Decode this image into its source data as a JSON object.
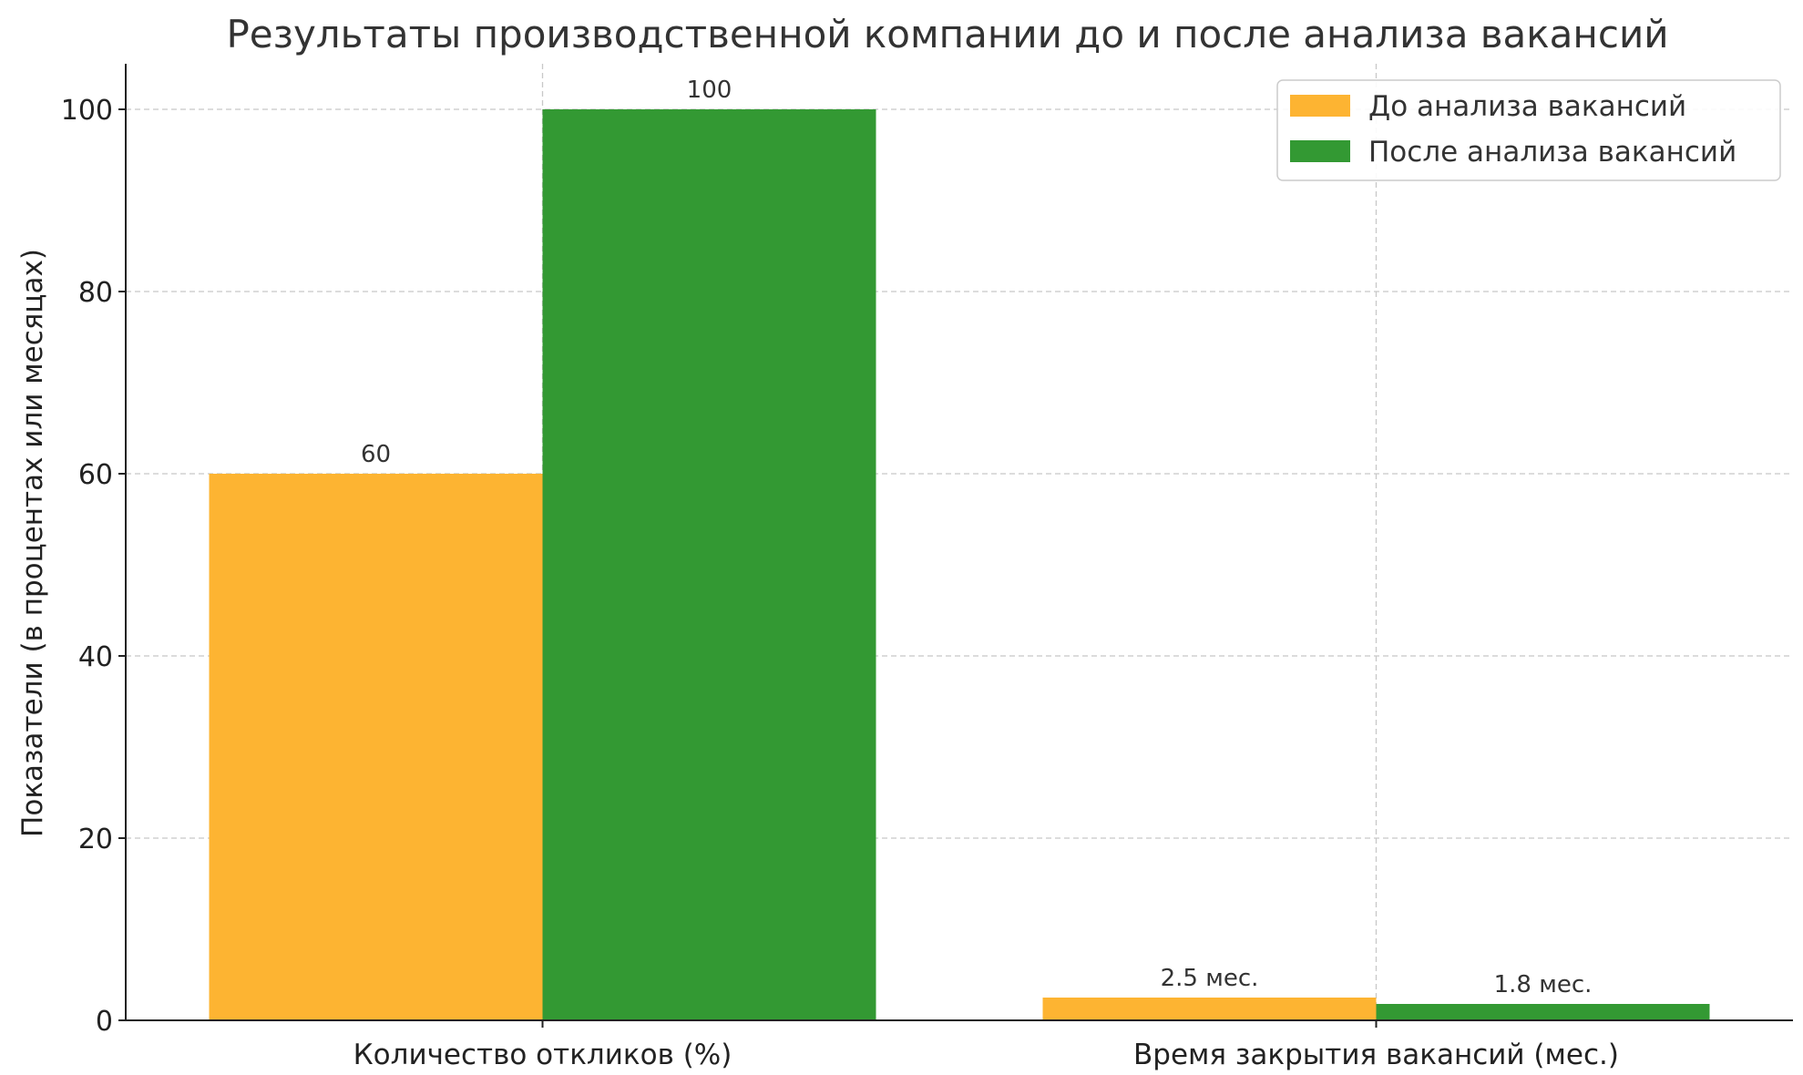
{
  "chart_data": {
    "type": "bar",
    "title": "Результаты производственной компании до и после анализа вакансий",
    "xlabel": "",
    "ylabel": "Показатели (в процентах или месяцах)",
    "categories": [
      "Количество откликов (%)",
      "Время закрытия вакансий (мес.)"
    ],
    "series": [
      {
        "name": "До анализа вакансий",
        "values": [
          60,
          2.5
        ],
        "labels": [
          "60",
          "2.5 мес."
        ],
        "color": "#fdb432"
      },
      {
        "name": "После анализа вакансий",
        "values": [
          100,
          1.8
        ],
        "labels": [
          "100",
          "1.8 мес."
        ],
        "color": "#339933"
      }
    ],
    "ylim": [
      0,
      105
    ],
    "yticks": [
      0,
      20,
      40,
      60,
      80,
      100
    ],
    "grid": true,
    "legend_position": "top-right"
  }
}
